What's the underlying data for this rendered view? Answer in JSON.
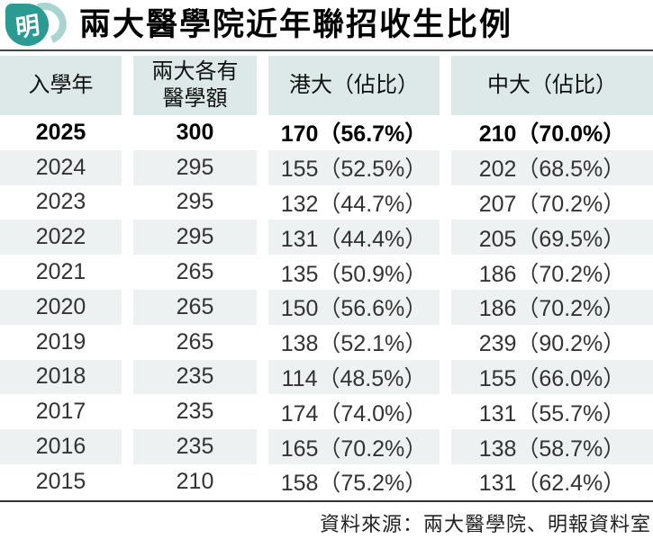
{
  "header": {
    "logo_char": "明",
    "title": "兩大醫學院近年聯招收生比例"
  },
  "colors": {
    "logo_teal": "#2a9a92",
    "logo_light_teal": "#a9d5d1",
    "header_bg": "#dce9e8",
    "row_stripe": "#eef1f1",
    "rule": "#3c4a49"
  },
  "table": {
    "columns": [
      "入學年",
      "兩大各有\n醫學額",
      "港大（佔比）",
      "中大（佔比）"
    ],
    "rows": [
      {
        "year": "2025",
        "quota": "300",
        "hku": "170（56.7%）",
        "cuhk": "210（70.0%）",
        "emphasis": true
      },
      {
        "year": "2024",
        "quota": "295",
        "hku": "155（52.5%）",
        "cuhk": "202（68.5%）",
        "emphasis": false
      },
      {
        "year": "2023",
        "quota": "295",
        "hku": "132（44.7%）",
        "cuhk": "207（70.2%）",
        "emphasis": false
      },
      {
        "year": "2022",
        "quota": "295",
        "hku": "131（44.4%）",
        "cuhk": "205（69.5%）",
        "emphasis": false
      },
      {
        "year": "2021",
        "quota": "265",
        "hku": "135（50.9%）",
        "cuhk": "186（70.2%）",
        "emphasis": false
      },
      {
        "year": "2020",
        "quota": "265",
        "hku": "150（56.6%）",
        "cuhk": "186（70.2%）",
        "emphasis": false
      },
      {
        "year": "2019",
        "quota": "265",
        "hku": "138（52.1%）",
        "cuhk": "239（90.2%）",
        "emphasis": false
      },
      {
        "year": "2018",
        "quota": "235",
        "hku": "114（48.5%）",
        "cuhk": "155（66.0%）",
        "emphasis": false
      },
      {
        "year": "2017",
        "quota": "235",
        "hku": "174（74.0%）",
        "cuhk": "131（55.7%）",
        "emphasis": false
      },
      {
        "year": "2016",
        "quota": "235",
        "hku": "165（70.2%）",
        "cuhk": "138（58.7%）",
        "emphasis": false
      },
      {
        "year": "2015",
        "quota": "210",
        "hku": "158（75.2%）",
        "cuhk": "131（62.4%）",
        "emphasis": false
      }
    ]
  },
  "footer": {
    "source": "資料來源：兩大醫學院、明報資料室"
  },
  "chart_data": {
    "type": "table",
    "title": "兩大醫學院近年聯招收生比例",
    "columns": [
      "入學年",
      "兩大各有醫學額",
      "港大（佔比）",
      "中大（佔比）"
    ],
    "years": [
      2025,
      2024,
      2023,
      2022,
      2021,
      2020,
      2019,
      2018,
      2017,
      2016,
      2015
    ],
    "series": [
      {
        "name": "兩大各有醫學額",
        "values": [
          300,
          295,
          295,
          295,
          265,
          265,
          265,
          235,
          235,
          235,
          210
        ]
      },
      {
        "name": "港大收生",
        "values": [
          170,
          155,
          132,
          131,
          135,
          150,
          138,
          114,
          174,
          165,
          158
        ]
      },
      {
        "name": "港大佔比%",
        "values": [
          56.7,
          52.5,
          44.7,
          44.4,
          50.9,
          56.6,
          52.1,
          48.5,
          74.0,
          70.2,
          75.2
        ]
      },
      {
        "name": "中大收生",
        "values": [
          210,
          202,
          207,
          205,
          186,
          186,
          239,
          155,
          131,
          138,
          131
        ]
      },
      {
        "name": "中大佔比%",
        "values": [
          70.0,
          68.5,
          70.2,
          69.5,
          70.2,
          70.2,
          90.2,
          66.0,
          55.7,
          58.7,
          62.4
        ]
      }
    ],
    "source": "資料來源：兩大醫學院、明報資料室"
  }
}
